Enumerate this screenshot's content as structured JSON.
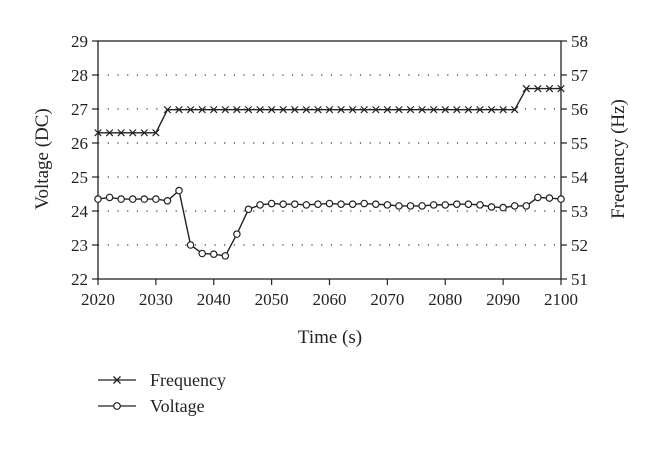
{
  "chart_data": {
    "type": "line",
    "xlabel": "Time (s)",
    "ylabel_left": "Voltage (DC)",
    "ylabel_right": "Frequency (Hz)",
    "xlim": [
      2020,
      2100
    ],
    "ylim_left": [
      22,
      29
    ],
    "ylim_right": [
      51,
      58
    ],
    "xticks": [
      "2020",
      "2030",
      "2040",
      "2050",
      "2060",
      "2070",
      "2080",
      "2090",
      "2100"
    ],
    "yticks_left": [
      "22",
      "23",
      "24",
      "25",
      "26",
      "27",
      "28",
      "29"
    ],
    "yticks_right": [
      "51",
      "52",
      "53",
      "54",
      "55",
      "56",
      "57",
      "58"
    ],
    "grid": "horizontal dotted",
    "legend_position": "below plot, left",
    "series": [
      {
        "name": "Frequency",
        "axis": "right",
        "marker": "x",
        "x": [
          2020,
          2022,
          2024,
          2026,
          2028,
          2030,
          2032,
          2034,
          2036,
          2038,
          2040,
          2042,
          2044,
          2046,
          2048,
          2050,
          2052,
          2054,
          2056,
          2058,
          2060,
          2062,
          2064,
          2066,
          2068,
          2070,
          2072,
          2074,
          2076,
          2078,
          2080,
          2082,
          2084,
          2086,
          2088,
          2090,
          2092,
          2094,
          2096,
          2098,
          2100
        ],
        "y": [
          55.3,
          55.3,
          55.3,
          55.3,
          55.3,
          55.3,
          55.98,
          55.98,
          55.98,
          55.98,
          55.98,
          55.98,
          55.98,
          55.98,
          55.98,
          55.98,
          55.98,
          55.98,
          55.98,
          55.98,
          55.98,
          55.98,
          55.98,
          55.98,
          55.98,
          55.98,
          55.98,
          55.98,
          55.98,
          55.98,
          55.98,
          55.98,
          55.98,
          55.98,
          55.98,
          55.98,
          55.98,
          56.6,
          56.6,
          56.6,
          56.6
        ]
      },
      {
        "name": "Voltage",
        "axis": "left",
        "marker": "circle",
        "x": [
          2020,
          2022,
          2024,
          2026,
          2028,
          2030,
          2032,
          2034,
          2036,
          2038,
          2040,
          2042,
          2044,
          2046,
          2048,
          2050,
          2052,
          2054,
          2056,
          2058,
          2060,
          2062,
          2064,
          2066,
          2068,
          2070,
          2072,
          2074,
          2076,
          2078,
          2080,
          2082,
          2084,
          2086,
          2088,
          2090,
          2092,
          2094,
          2096,
          2098,
          2100
        ],
        "y": [
          24.35,
          24.4,
          24.35,
          24.35,
          24.35,
          24.35,
          24.3,
          24.6,
          23.0,
          22.75,
          22.73,
          22.68,
          23.32,
          24.05,
          24.18,
          24.22,
          24.2,
          24.2,
          24.18,
          24.2,
          24.22,
          24.2,
          24.2,
          24.22,
          24.2,
          24.18,
          24.15,
          24.15,
          24.15,
          24.18,
          24.18,
          24.2,
          24.2,
          24.18,
          24.12,
          24.1,
          24.15,
          24.15,
          24.4,
          24.38,
          24.35
        ]
      }
    ]
  }
}
